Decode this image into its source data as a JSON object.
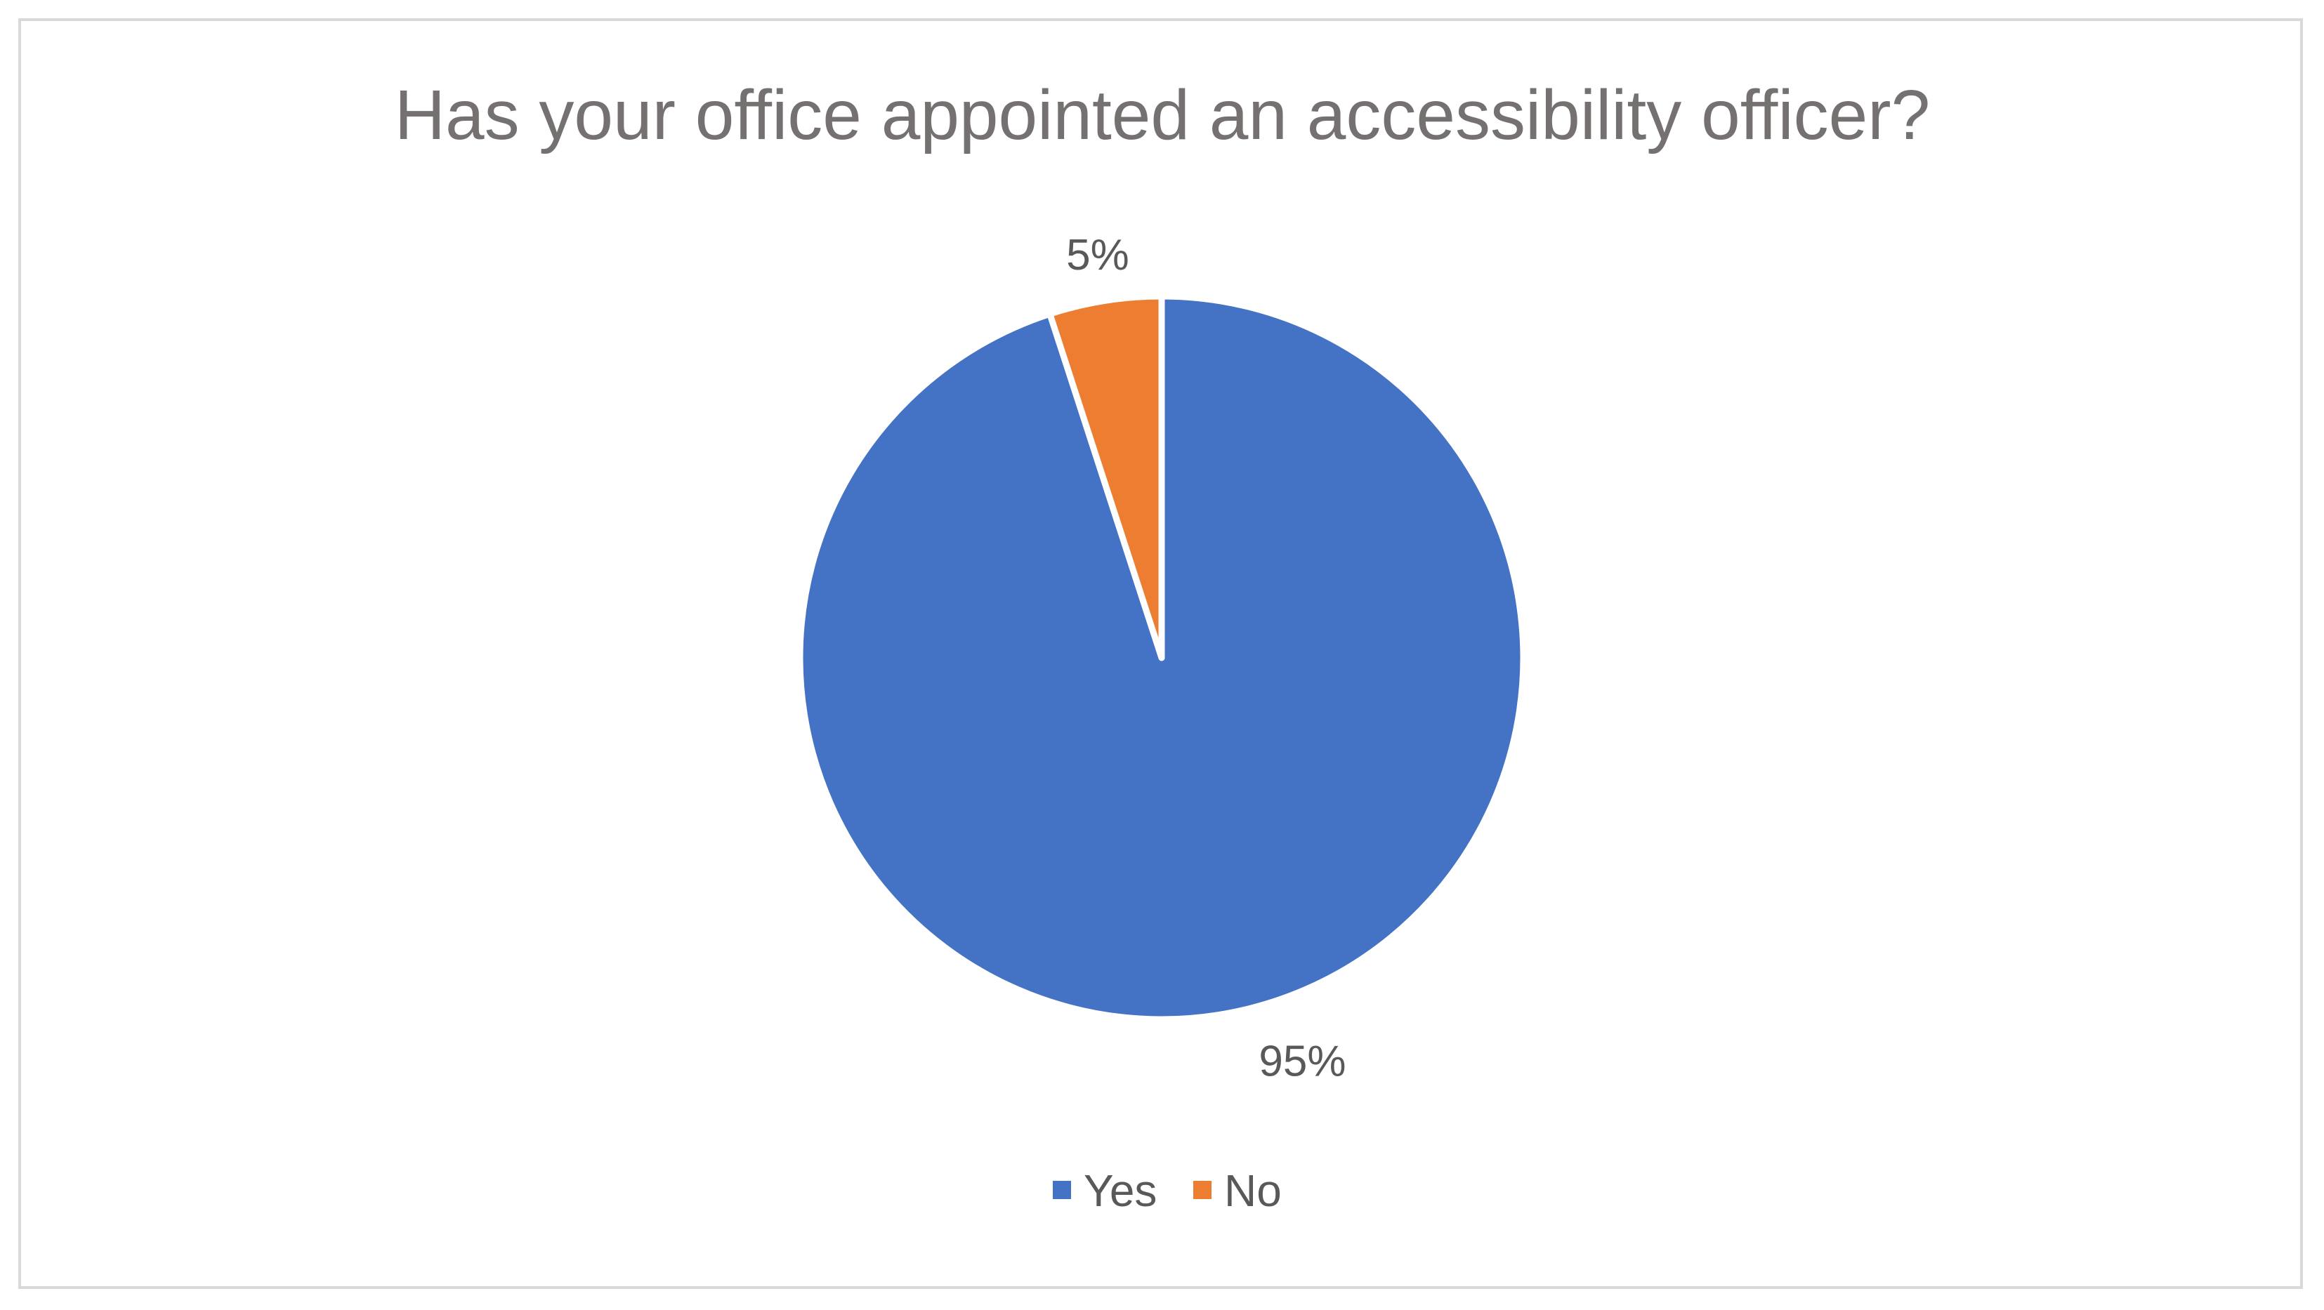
{
  "chart_data": {
    "type": "pie",
    "title": "Has your office appointed an accessibility officer?",
    "categories": [
      "Yes",
      "No"
    ],
    "values": [
      95,
      5
    ],
    "data_labels": [
      "95%",
      "5%"
    ],
    "colors": [
      "#4472C4",
      "#ED7D31"
    ],
    "legend": {
      "position": "bottom",
      "entries": [
        "Yes",
        "No"
      ]
    },
    "start_angle_deg": 0,
    "direction": "clockwise"
  }
}
